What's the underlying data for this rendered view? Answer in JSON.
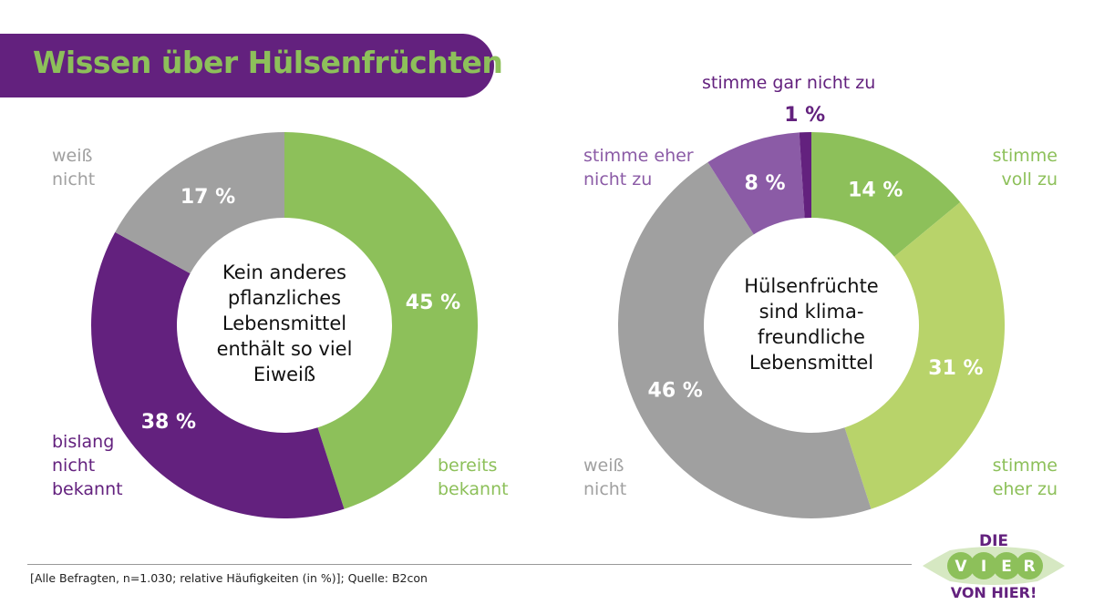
{
  "title": "Wissen über Hülsenfrüchten",
  "colors": {
    "green": "#8dc05a",
    "light_green": "#b8d36a",
    "purple": "#63217e",
    "light_purple": "#8b5ba6",
    "gray": "#a0a0a0"
  },
  "chart_data": [
    {
      "type": "donut",
      "center_text": "Kein anderes pflanzliches Lebensmittel enthält so viel Eiweiß",
      "slices": [
        {
          "label": "bereits bekannt",
          "value": 45,
          "value_label": "45 %",
          "color": "#8dc05a"
        },
        {
          "label": "bislang nicht bekannt",
          "value": 38,
          "value_label": "38 %",
          "color": "#63217e"
        },
        {
          "label": "weiß nicht",
          "value": 17,
          "value_label": "17 %",
          "color": "#a0a0a0"
        }
      ]
    },
    {
      "type": "donut",
      "center_text": "Hülsenfrüchte sind klima-freundliche Lebensmittel",
      "slices": [
        {
          "label": "stimme voll zu",
          "value": 14,
          "value_label": "14 %",
          "color": "#8dc05a"
        },
        {
          "label": "stimme eher zu",
          "value": 31,
          "value_label": "31 %",
          "color": "#b8d36a"
        },
        {
          "label": "weiß nicht",
          "value": 46,
          "value_label": "46 %",
          "color": "#a0a0a0"
        },
        {
          "label": "stimme eher nicht zu",
          "value": 8,
          "value_label": "8 %",
          "color": "#8b5ba6"
        },
        {
          "label": "stimme gar nicht zu",
          "value": 1,
          "value_label": "1 %",
          "color": "#63217e"
        }
      ]
    }
  ],
  "source": "[Alle Befragten, n=1.030; relative Häufigkeiten (in %)]; Quelle: B2con",
  "logo": {
    "top": "DIE",
    "letters": [
      "V",
      "I",
      "E",
      "R"
    ],
    "bottom": "VON HIER!"
  }
}
